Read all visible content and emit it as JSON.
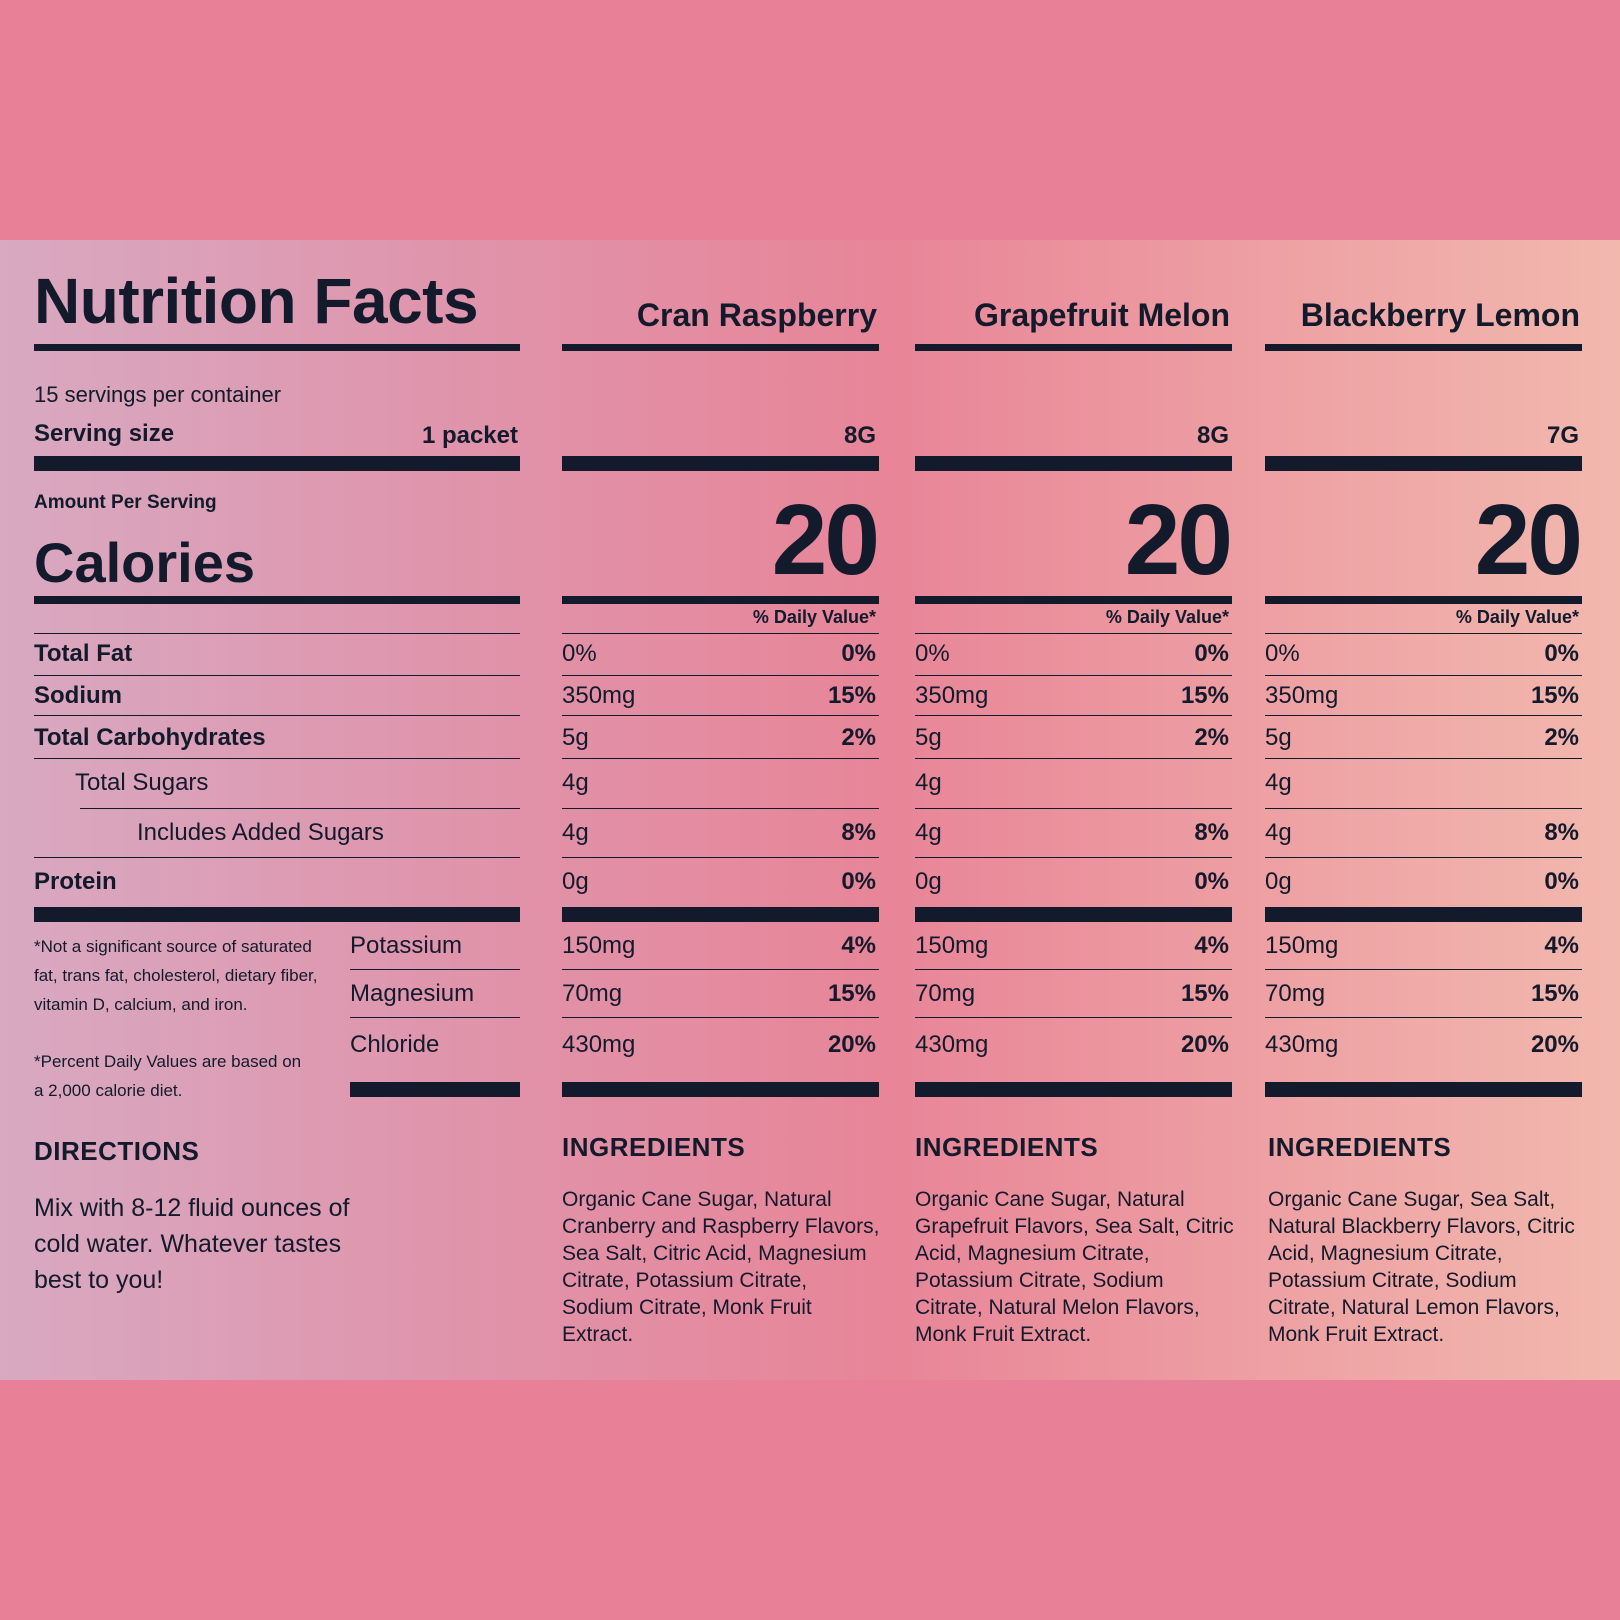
{
  "colors": {
    "background": "#e88198",
    "ink": "#131a2b"
  },
  "title": "Nutrition Facts",
  "servings_per_container": "15 servings per container",
  "serving_size_label": "Serving size",
  "serving_size_value": "1 packet",
  "amount_per_serving": "Amount Per Serving",
  "calories_label": "Calories",
  "nutrients": {
    "total_fat": "Total Fat",
    "sodium": "Sodium",
    "total_carbohydrates": "Total Carbohydrates",
    "total_sugars": "Total Sugars",
    "added_sugars": "Includes Added Sugars",
    "protein": "Protein",
    "potassium": "Potassium",
    "magnesium": "Magnesium",
    "chloride": "Chloride"
  },
  "footnotes": {
    "not_significant": "*Not a significant source of saturated fat, trans fat, cholesterol, dietary fiber, vitamin D, calcium, and iron.",
    "daily_values": "*Percent Daily Values are based on a 2,000 calorie diet."
  },
  "directions": {
    "heading": "DIRECTIONS",
    "text": "Mix with 8-12 fluid ounces of cold water. Whatever tastes best to you!"
  },
  "flavors": [
    {
      "name": "Cran Raspberry",
      "serving_weight": "8G",
      "calories": "20",
      "dv_header": "% Daily Value*",
      "total_fat": {
        "amount": "0%",
        "dv": "0%"
      },
      "sodium": {
        "amount": "350mg",
        "dv": "15%"
      },
      "total_carbohydrates": {
        "amount": "5g",
        "dv": "2%"
      },
      "total_sugars": {
        "amount": "4g"
      },
      "added_sugars": {
        "amount": "4g",
        "dv": "8%"
      },
      "protein": {
        "amount": "0g",
        "dv": "0%"
      },
      "potassium": {
        "amount": "150mg",
        "dv": "4%"
      },
      "magnesium": {
        "amount": "70mg",
        "dv": "15%"
      },
      "chloride": {
        "amount": "430mg",
        "dv": "20%"
      },
      "ingredients_heading": "INGREDIENTS",
      "ingredients": "Organic Cane Sugar, Natural Cranberry and Raspberry Flavors, Sea Salt, Citric Acid, Magnesium Citrate, Potassium Citrate, Sodium Citrate, Monk Fruit Extract."
    },
    {
      "name": "Grapefruit Melon",
      "serving_weight": "8G",
      "calories": "20",
      "dv_header": "% Daily Value*",
      "total_fat": {
        "amount": "0%",
        "dv": "0%"
      },
      "sodium": {
        "amount": "350mg",
        "dv": "15%"
      },
      "total_carbohydrates": {
        "amount": "5g",
        "dv": "2%"
      },
      "total_sugars": {
        "amount": "4g"
      },
      "added_sugars": {
        "amount": "4g",
        "dv": "8%"
      },
      "protein": {
        "amount": "0g",
        "dv": "0%"
      },
      "potassium": {
        "amount": "150mg",
        "dv": "4%"
      },
      "magnesium": {
        "amount": "70mg",
        "dv": "15%"
      },
      "chloride": {
        "amount": "430mg",
        "dv": "20%"
      },
      "ingredients_heading": "INGREDIENTS",
      "ingredients": "Organic Cane Sugar, Natural Grapefruit Flavors, Sea Salt, Citric Acid, Magnesium Citrate, Potassium Citrate, Sodium Citrate, Natural Melon Flavors, Monk Fruit Extract."
    },
    {
      "name": "Blackberry Lemon",
      "serving_weight": "7G",
      "calories": "20",
      "dv_header": "% Daily Value*",
      "total_fat": {
        "amount": "0%",
        "dv": "0%"
      },
      "sodium": {
        "amount": "350mg",
        "dv": "15%"
      },
      "total_carbohydrates": {
        "amount": "5g",
        "dv": "2%"
      },
      "total_sugars": {
        "amount": "4g"
      },
      "added_sugars": {
        "amount": "4g",
        "dv": "8%"
      },
      "protein": {
        "amount": "0g",
        "dv": "0%"
      },
      "potassium": {
        "amount": "150mg",
        "dv": "4%"
      },
      "magnesium": {
        "amount": "70mg",
        "dv": "15%"
      },
      "chloride": {
        "amount": "430mg",
        "dv": "20%"
      },
      "ingredients_heading": "INGREDIENTS",
      "ingredients": "Organic Cane Sugar, Sea Salt, Natural Blackberry Flavors, Citric Acid, Magnesium Citrate, Potassium Citrate, Sodium Citrate, Natural Lemon Flavors, Monk Fruit Extract."
    }
  ]
}
